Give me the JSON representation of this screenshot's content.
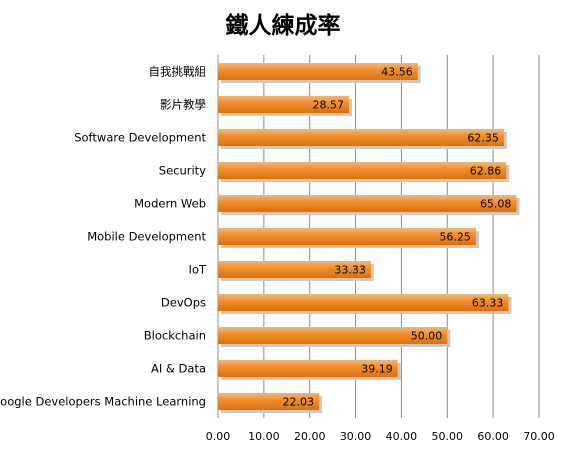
{
  "chart_data": {
    "type": "bar",
    "orientation": "horizontal",
    "title": "鐵人練成率",
    "xlabel": "",
    "ylabel": "",
    "categories": [
      "自我挑戰組",
      "影片教學",
      "Software Development",
      "Security",
      "Modern Web",
      "Mobile Development",
      "IoT",
      "DevOps",
      "Blockchain",
      "AI & Data",
      "Google Developers Machine Learning"
    ],
    "values": [
      43.56,
      28.57,
      62.35,
      62.86,
      65.08,
      56.25,
      33.33,
      63.33,
      50.0,
      39.19,
      22.03
    ],
    "data_labels": [
      "43.56",
      "28.57",
      "62.35",
      "62.86",
      "65.08",
      "56.25",
      "33.33",
      "63.33",
      "50.00",
      "39.19",
      "22.03"
    ],
    "xlim": [
      0,
      70
    ],
    "xticks": [
      0,
      10,
      20,
      30,
      40,
      50,
      60,
      70
    ],
    "xtick_labels": [
      "0.00",
      "10.00",
      "20.00",
      "30.00",
      "40.00",
      "50.00",
      "60.00",
      "70.00"
    ],
    "grid": "vertical",
    "legend": "none",
    "colors": {
      "bar_light": "#f9b46e",
      "bar": "#f28c2a",
      "bar_dark": "#d9700f",
      "grid": "#8c8c8c",
      "shadow": "#c8c8c8"
    }
  }
}
